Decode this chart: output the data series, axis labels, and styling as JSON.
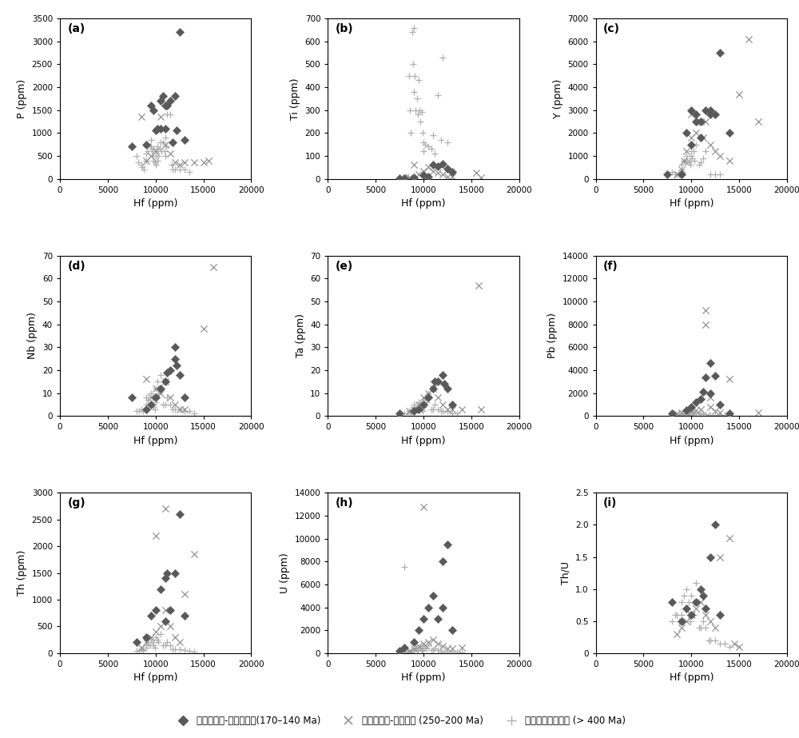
{
  "subplots": [
    {
      "label": "(a)",
      "ylabel": "P (ppm)",
      "ylim": [
        0,
        3500
      ],
      "yticks": [
        0,
        500,
        1000,
        1500,
        2000,
        2500,
        3000,
        3500
      ]
    },
    {
      "label": "(b)",
      "ylabel": "Ti (ppm)",
      "ylim": [
        0,
        700
      ],
      "yticks": [
        0,
        100,
        200,
        300,
        400,
        500,
        600,
        700
      ]
    },
    {
      "label": "(c)",
      "ylabel": "Y (ppm)",
      "ylim": [
        0,
        7000
      ],
      "yticks": [
        0,
        1000,
        2000,
        3000,
        4000,
        5000,
        6000,
        7000
      ]
    },
    {
      "label": "(d)",
      "ylabel": "Nb (ppm)",
      "ylim": [
        0,
        70
      ],
      "yticks": [
        0,
        10,
        20,
        30,
        40,
        50,
        60,
        70
      ]
    },
    {
      "label": "(e)",
      "ylabel": "Ta (ppm)",
      "ylim": [
        0,
        70
      ],
      "yticks": [
        0,
        10,
        20,
        30,
        40,
        50,
        60,
        70
      ]
    },
    {
      "label": "(f)",
      "ylabel": "Pb (ppm)",
      "ylim": [
        0,
        14000
      ],
      "yticks": [
        0,
        2000,
        4000,
        6000,
        8000,
        10000,
        12000,
        14000
      ]
    },
    {
      "label": "(g)",
      "ylabel": "Th (ppm)",
      "ylim": [
        0,
        3000
      ],
      "yticks": [
        0,
        500,
        1000,
        1500,
        2000,
        2500,
        3000
      ]
    },
    {
      "label": "(h)",
      "ylabel": "U (ppm)",
      "ylim": [
        0,
        14000
      ],
      "yticks": [
        0,
        2000,
        4000,
        6000,
        8000,
        10000,
        12000,
        14000
      ]
    },
    {
      "label": "(i)",
      "ylabel": "Th/U",
      "ylim": [
        0,
        2.5
      ],
      "yticks": [
        0,
        0.5,
        1.0,
        1.5,
        2.0,
        2.5
      ]
    }
  ],
  "xlabel": "Hf (ppm)",
  "xlim": [
    0,
    20000
  ],
  "xticks": [
    0,
    5000,
    10000,
    15000,
    20000
  ],
  "legend": [
    {
      "label": "俯罗纪岩浆-热液锦石：(170–140 Ma)"
    },
    {
      "label": "三叠纪岩浆-热液锦石 (250–200 Ma)"
    },
    {
      "label": "前泥盆纪碎屑锦石 (> 400 Ma)"
    }
  ],
  "diamond_color": "#595959",
  "cross_color": "#949494",
  "plus_color": "#b0b0b0",
  "P_diamond_hf": [
    7500,
    9000,
    9500,
    9800,
    10000,
    10200,
    10500,
    10500,
    10800,
    11000,
    11000,
    11200,
    11500,
    11800,
    12000,
    12200,
    12500,
    13000
  ],
  "P_diamond_y": [
    700,
    750,
    1600,
    1500,
    1050,
    1100,
    1700,
    1100,
    1800,
    1100,
    1600,
    1600,
    1700,
    800,
    1800,
    1050,
    3200,
    850
  ],
  "P_cross_hf": [
    8500,
    9000,
    9500,
    10000,
    10500,
    11000,
    11500,
    12000,
    12500,
    13000,
    14000,
    15000,
    15500
  ],
  "P_cross_y": [
    1350,
    400,
    500,
    600,
    1350,
    750,
    550,
    350,
    300,
    350,
    350,
    350,
    400
  ],
  "P_plus_hf": [
    8000,
    8200,
    8500,
    8600,
    8800,
    9000,
    9000,
    9200,
    9200,
    9400,
    9500,
    9500,
    9600,
    9700,
    9800,
    9800,
    9900,
    10000,
    10000,
    10100,
    10200,
    10200,
    10300,
    10400,
    10500,
    10600,
    10800,
    10900,
    11000,
    11000,
    11100,
    11200,
    11500,
    11700,
    11800,
    12000,
    12500,
    13000,
    13500
  ],
  "P_plus_y": [
    500,
    350,
    300,
    250,
    200,
    550,
    400,
    750,
    600,
    700,
    850,
    700,
    600,
    500,
    650,
    400,
    350,
    500,
    300,
    600,
    700,
    400,
    500,
    650,
    800,
    600,
    800,
    600,
    900,
    500,
    700,
    1400,
    1400,
    300,
    200,
    200,
    200,
    200,
    150
  ],
  "Ti_diamond_hf": [
    7500,
    8000,
    9000,
    10000,
    10500,
    11000,
    11500,
    12000,
    12500,
    13000
  ],
  "Ti_diamond_y": [
    3,
    3,
    5,
    15,
    10,
    60,
    55,
    65,
    45,
    30
  ],
  "Ti_cross_hf": [
    8500,
    9000,
    9500,
    10000,
    10500,
    11000,
    11500,
    12000,
    12500,
    13000,
    15500,
    16000
  ],
  "Ti_cross_y": [
    5,
    60,
    20,
    35,
    50,
    35,
    25,
    20,
    10,
    10,
    25,
    5
  ],
  "Ti_plus_hf": [
    7800,
    8000,
    8200,
    8400,
    8500,
    8600,
    8700,
    8800,
    8900,
    9000,
    9000,
    9100,
    9200,
    9300,
    9400,
    9500,
    9600,
    9700,
    9800,
    9900,
    10000,
    10000,
    10200,
    10500,
    10800,
    11000,
    11200,
    11500,
    11800,
    12000,
    12500
  ],
  "Ti_plus_y": [
    5,
    5,
    8,
    10,
    450,
    300,
    200,
    640,
    500,
    660,
    380,
    450,
    300,
    350,
    280,
    430,
    300,
    250,
    290,
    200,
    160,
    120,
    150,
    140,
    130,
    190,
    110,
    365,
    170,
    530,
    160
  ],
  "Y_diamond_hf": [
    7500,
    9000,
    9500,
    10000,
    10000,
    10500,
    10500,
    11000,
    11000,
    11500,
    12000,
    12000,
    12500,
    13000,
    14000
  ],
  "Y_diamond_y": [
    200,
    200,
    2000,
    1500,
    3000,
    2800,
    2500,
    2500,
    1800,
    3000,
    3000,
    2800,
    2800,
    5500,
    2000
  ],
  "Y_cross_hf": [
    8500,
    9000,
    9200,
    9500,
    10000,
    10000,
    10500,
    11000,
    11200,
    11500,
    12000,
    12500,
    13000,
    14000,
    15000,
    16000,
    17000
  ],
  "Y_cross_y": [
    200,
    400,
    800,
    1200,
    1800,
    2800,
    2000,
    2500,
    1800,
    2500,
    1500,
    1200,
    1000,
    800,
    3700,
    6100,
    2500
  ],
  "Y_plus_hf": [
    8000,
    8300,
    8500,
    8700,
    9000,
    9000,
    9200,
    9400,
    9500,
    9600,
    9700,
    9800,
    9900,
    10000,
    10000,
    10100,
    10200,
    10300,
    10500,
    10800,
    11000,
    11200,
    11500,
    12000,
    12500,
    13000
  ],
  "Y_plus_y": [
    300,
    200,
    200,
    250,
    400,
    600,
    800,
    700,
    1000,
    800,
    700,
    800,
    600,
    1000,
    1200,
    900,
    1200,
    800,
    1500,
    600,
    700,
    900,
    1200,
    200,
    200,
    200
  ],
  "Nb_diamond_hf": [
    7500,
    9000,
    9500,
    10000,
    10500,
    11000,
    11200,
    11500,
    12000,
    12000,
    12200,
    12500,
    13000
  ],
  "Nb_diamond_y": [
    8,
    3,
    5,
    8,
    12,
    15,
    19,
    20,
    25,
    30,
    22,
    18,
    8
  ],
  "Nb_cross_hf": [
    9000,
    9500,
    10000,
    10500,
    11000,
    11500,
    12000,
    12500,
    13000,
    15000,
    16000
  ],
  "Nb_cross_y": [
    16,
    8,
    12,
    10,
    15,
    8,
    5,
    3,
    3,
    38,
    65
  ],
  "Nb_plus_hf": [
    8000,
    8300,
    8500,
    8700,
    9000,
    9000,
    9200,
    9400,
    9500,
    9700,
    9800,
    9900,
    10000,
    10000,
    10200,
    10300,
    10500,
    10800,
    11000,
    11200,
    11500,
    11800,
    12000,
    12500,
    13000,
    13500,
    14000
  ],
  "Nb_plus_y": [
    2,
    2,
    3,
    2,
    5,
    8,
    7,
    5,
    10,
    8,
    4,
    3,
    12,
    6,
    15,
    10,
    18,
    5,
    5,
    8,
    5,
    3,
    3,
    3,
    2,
    2,
    1
  ],
  "Ta_diamond_hf": [
    7500,
    9000,
    9500,
    10000,
    10500,
    11000,
    11200,
    11500,
    12000,
    12200,
    12500,
    13000
  ],
  "Ta_diamond_y": [
    1,
    2,
    3,
    5,
    8,
    12,
    15,
    15,
    18,
    14,
    12,
    5
  ],
  "Ta_cross_hf": [
    8500,
    9000,
    9500,
    10000,
    10500,
    11000,
    11500,
    12000,
    12500,
    13000,
    14000,
    15800,
    16000
  ],
  "Ta_cross_y": [
    2,
    3,
    5,
    8,
    10,
    12,
    8,
    5,
    3,
    3,
    3,
    57,
    3
  ],
  "Ta_plus_hf": [
    8000,
    8300,
    8500,
    8700,
    9000,
    9000,
    9200,
    9400,
    9500,
    9700,
    9800,
    9900,
    10000,
    10000,
    10200,
    10300,
    10500,
    10800,
    11000,
    11200,
    11500,
    11800,
    12000,
    12500,
    13000,
    13500
  ],
  "Ta_plus_y": [
    1,
    1,
    2,
    1,
    3,
    5,
    4,
    3,
    6,
    5,
    3,
    2,
    7,
    4,
    8,
    6,
    10,
    3,
    3,
    5,
    3,
    2,
    2,
    2,
    1,
    1
  ],
  "Pb_diamond_hf": [
    8000,
    9500,
    10000,
    10500,
    11000,
    11200,
    11500,
    12000,
    12000,
    12500,
    13000,
    14000
  ],
  "Pb_diamond_y": [
    200,
    500,
    800,
    1200,
    1500,
    2100,
    3400,
    4600,
    2000,
    3500,
    1000,
    200
  ],
  "Pb_cross_hf": [
    8500,
    9000,
    9500,
    10000,
    10500,
    11000,
    11500,
    11500,
    12000,
    12000,
    12500,
    13000,
    14000,
    17000
  ],
  "Pb_cross_y": [
    200,
    300,
    300,
    400,
    500,
    600,
    9200,
    8000,
    1600,
    800,
    400,
    300,
    3200,
    300
  ],
  "Pb_plus_hf": [
    8000,
    8300,
    8500,
    8700,
    9000,
    9000,
    9200,
    9400,
    9500,
    9700,
    9800,
    9900,
    10000,
    10200,
    10300,
    10500,
    10800,
    11000,
    11200,
    11500,
    11800,
    12000,
    12500,
    13000,
    13500,
    14000
  ],
  "Pb_plus_y": [
    100,
    80,
    100,
    80,
    200,
    150,
    200,
    150,
    300,
    200,
    150,
    100,
    400,
    300,
    200,
    250,
    200,
    150,
    200,
    150,
    100,
    100,
    100,
    80,
    80,
    50
  ],
  "Th_diamond_hf": [
    8000,
    9000,
    9500,
    10000,
    10500,
    11000,
    11000,
    11200,
    11500,
    12000,
    12500,
    13000
  ],
  "Th_diamond_y": [
    200,
    300,
    700,
    800,
    1200,
    1400,
    600,
    1500,
    800,
    1500,
    2600,
    700
  ],
  "Th_cross_hf": [
    8500,
    9000,
    9500,
    10000,
    10000,
    10500,
    11000,
    11000,
    11500,
    12000,
    12500,
    13000,
    14000
  ],
  "Th_cross_y": [
    100,
    200,
    300,
    400,
    2200,
    500,
    800,
    2700,
    500,
    300,
    200,
    1100,
    1850
  ],
  "Th_plus_hf": [
    8000,
    8300,
    8500,
    8700,
    9000,
    9000,
    9200,
    9400,
    9500,
    9700,
    9800,
    9900,
    10000,
    10200,
    10300,
    10500,
    10800,
    11000,
    11200,
    11500,
    11800,
    12000,
    12500,
    13000,
    13500,
    14000
  ],
  "Th_plus_y": [
    50,
    40,
    80,
    60,
    150,
    100,
    200,
    150,
    250,
    200,
    150,
    100,
    300,
    250,
    200,
    350,
    150,
    150,
    200,
    150,
    80,
    80,
    80,
    60,
    50,
    30
  ],
  "U_diamond_hf": [
    7500,
    8000,
    9000,
    9500,
    10000,
    10500,
    11000,
    11500,
    12000,
    12000,
    12500,
    13000
  ],
  "U_diamond_y": [
    200,
    500,
    1000,
    2000,
    3000,
    4000,
    5000,
    3000,
    8000,
    4000,
    9500,
    2000
  ],
  "U_cross_hf": [
    8500,
    9000,
    9500,
    10000,
    10500,
    11000,
    11500,
    12000,
    12500,
    13000,
    14000,
    10000
  ],
  "U_cross_y": [
    200,
    400,
    600,
    800,
    1000,
    1200,
    800,
    600,
    400,
    400,
    500,
    12800
  ],
  "U_plus_hf": [
    8000,
    8000,
    8300,
    8500,
    8700,
    9000,
    9000,
    9200,
    9400,
    9500,
    9700,
    9800,
    9900,
    10000,
    10200,
    10300,
    10500,
    10800,
    11000,
    11200,
    11500,
    11800,
    12000,
    12500,
    13000,
    13500,
    14000
  ],
  "U_plus_y": [
    100,
    7500,
    80,
    150,
    80,
    300,
    200,
    400,
    300,
    500,
    400,
    300,
    200,
    600,
    500,
    400,
    700,
    300,
    300,
    400,
    300,
    150,
    150,
    150,
    120,
    100,
    80
  ],
  "ThU_diamond_hf": [
    8000,
    9000,
    9500,
    10000,
    10500,
    11000,
    11200,
    11500,
    12000,
    12500,
    13000
  ],
  "ThU_diamond_y": [
    0.8,
    0.5,
    0.7,
    0.6,
    0.8,
    1.0,
    0.9,
    0.7,
    1.5,
    2.0,
    0.6
  ],
  "ThU_cross_hf": [
    8500,
    9000,
    9500,
    10000,
    10500,
    11000,
    11500,
    12000,
    12500,
    13000,
    14000,
    14500,
    15000
  ],
  "ThU_cross_y": [
    0.3,
    0.4,
    0.5,
    0.6,
    0.7,
    0.8,
    0.6,
    0.5,
    0.4,
    1.5,
    1.8,
    0.15,
    0.1
  ],
  "ThU_plus_hf": [
    8000,
    8300,
    8500,
    8700,
    9000,
    9000,
    9200,
    9400,
    9500,
    9700,
    9800,
    9900,
    10000,
    10200,
    10300,
    10500,
    10800,
    11000,
    11200,
    11500,
    11800,
    12000,
    12500,
    13000,
    13500,
    14000
  ],
  "ThU_plus_y": [
    0.5,
    0.6,
    0.6,
    0.5,
    0.8,
    0.6,
    0.9,
    0.7,
    1.0,
    0.8,
    0.6,
    0.5,
    0.9,
    0.8,
    0.6,
    1.1,
    0.4,
    0.4,
    0.5,
    0.4,
    0.2,
    0.2,
    0.2,
    0.15,
    0.15,
    0.1
  ]
}
